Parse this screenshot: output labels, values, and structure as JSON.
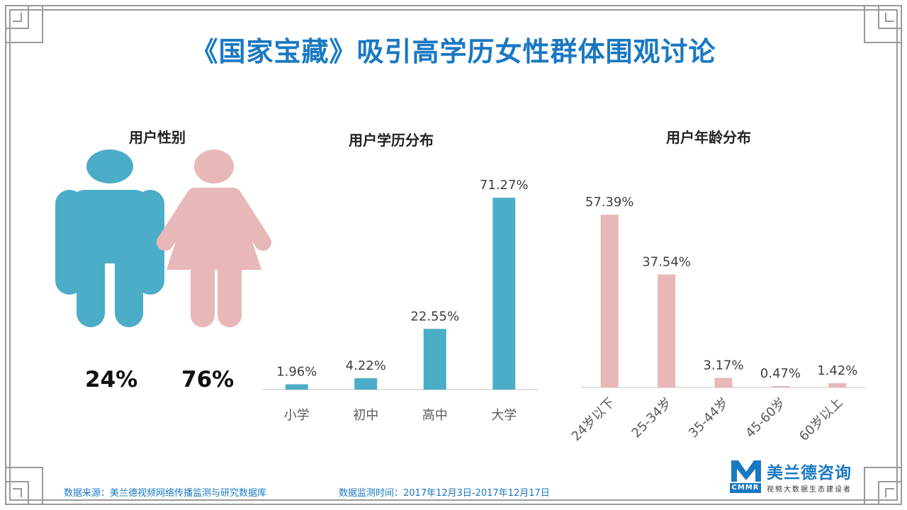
{
  "title": "《国家宝藏》吸引高学历女性群体围观讨论",
  "gender": {
    "title": "用户性别",
    "male_pct": "24%",
    "female_pct": "76%",
    "male_value": 24,
    "female_value": 76,
    "male_color": "#4badc7",
    "female_color": "#e8b7b8"
  },
  "chart_data": [
    {
      "type": "bar",
      "title": "用户学历分布",
      "categories": [
        "小学",
        "初中",
        "高中",
        "大学"
      ],
      "values": [
        1.96,
        4.22,
        22.55,
        71.27
      ],
      "labels": [
        "1.96%",
        "4.22%",
        "22.55%",
        "71.27%"
      ],
      "ylim": [
        0,
        75
      ],
      "grid": false,
      "color": "#4badc7"
    },
    {
      "type": "bar",
      "title": "用户年龄分布",
      "categories": [
        "24岁以下",
        "25-34岁",
        "35-44岁",
        "45-60岁",
        "60岁以上"
      ],
      "values": [
        57.39,
        37.54,
        3.17,
        0.47,
        1.42
      ],
      "labels": [
        "57.39%",
        "37.54%",
        "3.17%",
        "0.47%",
        "1.42%"
      ],
      "ylim": [
        0,
        60
      ],
      "grid": false,
      "color": "#e8b7b8"
    }
  ],
  "footer": {
    "source": "数据来源：美兰德视频网络传播监测与研究数据库",
    "period": "数据监测时间：2017年12月3日-2017年12月17日"
  },
  "logo": {
    "name": "美兰德咨询",
    "abbr": "CMMR",
    "slogan": "视频大数据生态建设者"
  }
}
